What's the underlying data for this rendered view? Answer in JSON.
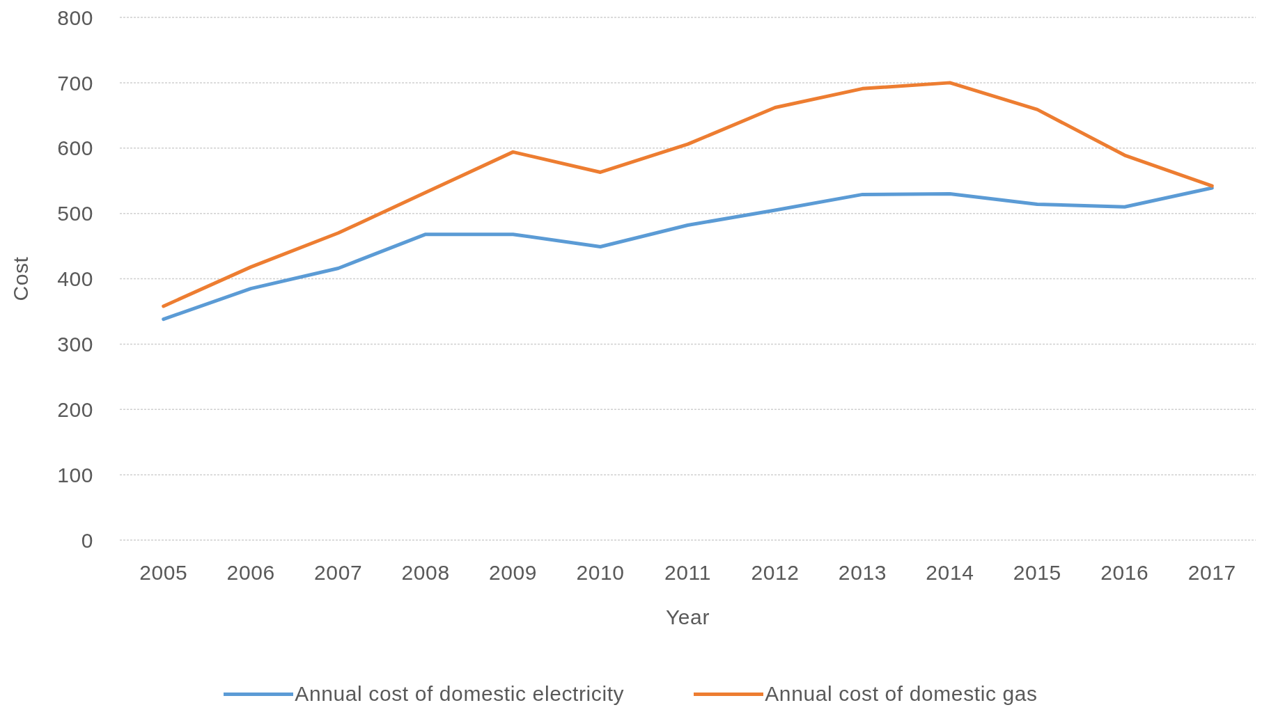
{
  "chart_data": {
    "type": "line",
    "xlabel": "Year",
    "ylabel": "Cost",
    "categories": [
      "2005",
      "2006",
      "2007",
      "2008",
      "2009",
      "2010",
      "2011",
      "2012",
      "2013",
      "2014",
      "2015",
      "2016",
      "2017"
    ],
    "series": [
      {
        "name": "Annual cost of domestic electricity",
        "color": "#5b9bd5",
        "values": [
          338,
          385,
          416,
          468,
          468,
          449,
          482,
          505,
          529,
          530,
          514,
          510,
          539
        ]
      },
      {
        "name": "Annual cost of domestic gas",
        "color": "#ed7d31",
        "values": [
          358,
          418,
          470,
          532,
          594,
          563,
          606,
          662,
          691,
          700,
          659,
          589,
          542
        ]
      }
    ],
    "ylim": [
      0,
      800
    ],
    "yticks": [
      0,
      100,
      200,
      300,
      400,
      500,
      600,
      700,
      800
    ],
    "grid": "y",
    "legend": "bottom",
    "line_style": "solid"
  }
}
